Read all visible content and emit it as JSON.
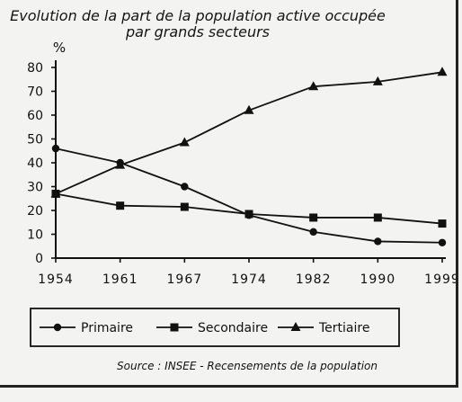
{
  "chart_data": {
    "type": "line",
    "title": "Evolution de la part de la population active occupée",
    "subtitle": "par grands secteurs",
    "ylabel": "%",
    "categories": [
      "1954",
      "1961",
      "1967",
      "1974",
      "1982",
      "1990",
      "1999"
    ],
    "ylim": [
      0,
      80
    ],
    "yticks": [
      0,
      10,
      20,
      30,
      40,
      50,
      60,
      70,
      80
    ],
    "grid": false,
    "legend_position": "bottom",
    "series": [
      {
        "name": "Primaire",
        "marker": "circle",
        "values": [
          46,
          40,
          30,
          18,
          11,
          7,
          6.5
        ]
      },
      {
        "name": "Secondaire",
        "marker": "square",
        "values": [
          27,
          22,
          21.5,
          18.5,
          17,
          17,
          14.5
        ]
      },
      {
        "name": "Tertiaire",
        "marker": "triangle",
        "values": [
          27,
          39,
          48.5,
          62,
          72,
          74,
          78
        ]
      }
    ],
    "source": "Source : INSEE - Recensements de la population"
  }
}
